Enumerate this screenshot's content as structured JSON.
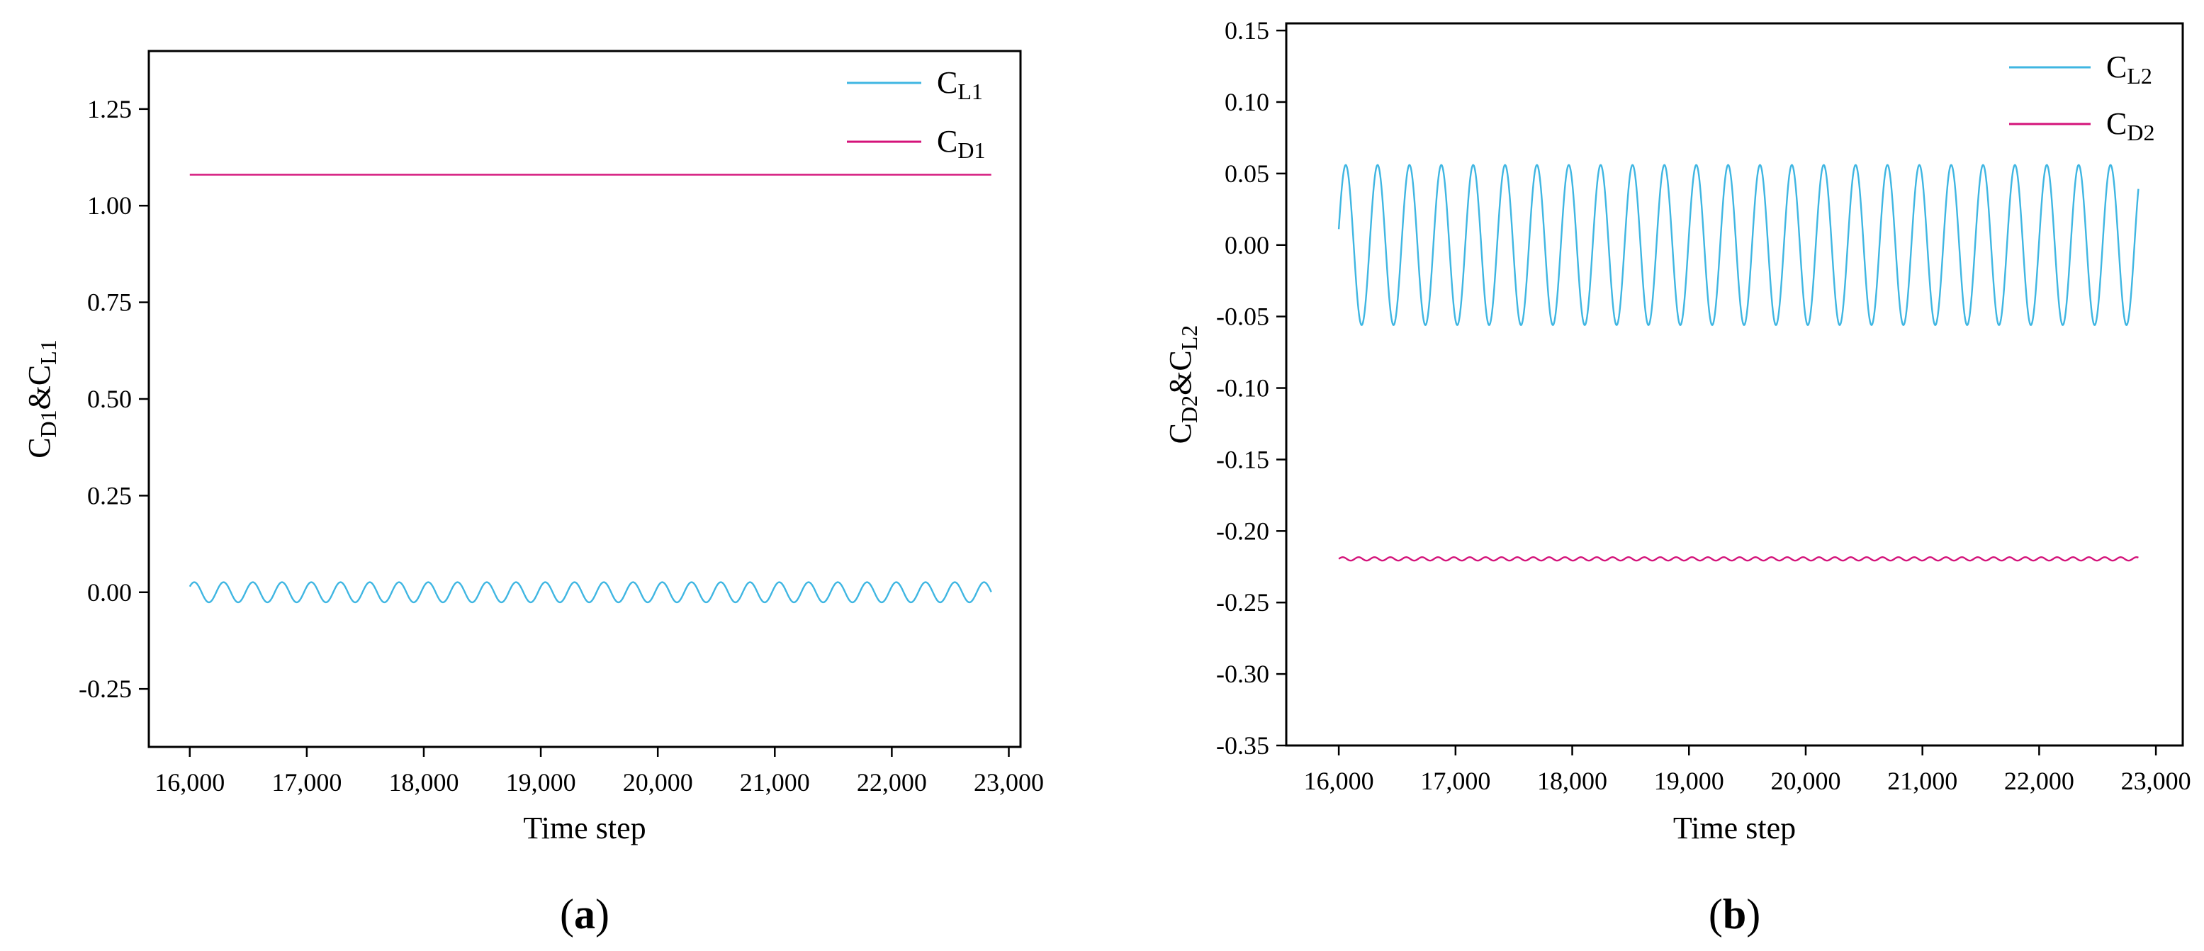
{
  "chart_data": [
    {
      "type": "line",
      "panel_label": "a",
      "xlabel": "Time step",
      "ylabel": {
        "base1": "C",
        "sub1": "D1",
        "amp": "&",
        "base2": "C",
        "sub2": "L1"
      },
      "xlim": [
        15650,
        23100
      ],
      "ylim": [
        -0.4,
        1.4
      ],
      "xticks": [
        16000,
        17000,
        18000,
        19000,
        20000,
        21000,
        22000,
        23000
      ],
      "xtick_labels": [
        "16,000",
        "17,000",
        "18,000",
        "19,000",
        "20,000",
        "21,000",
        "22,000",
        "23,000"
      ],
      "yticks": [
        -0.25,
        0,
        0.25,
        0.5,
        0.75,
        1,
        1.25
      ],
      "ytick_labels": [
        "-0.25",
        "0.00",
        "0.25",
        "0.50",
        "0.75",
        "1.00",
        "1.25"
      ],
      "legend_position": "top-right",
      "series": [
        {
          "name": "CL1",
          "label_base": "C",
          "label_sub": "L1",
          "color": "#3fb6e2",
          "kind": "sine",
          "x_start": 16000,
          "x_end": 22850,
          "mean": 0.0,
          "amplitude": 0.026,
          "period": 250,
          "phase": 0.6
        },
        {
          "name": "CD1",
          "label_base": "C",
          "label_sub": "D1",
          "color": "#d4137a",
          "kind": "constant",
          "x_start": 16000,
          "x_end": 22850,
          "value": 1.08
        }
      ]
    },
    {
      "type": "line",
      "panel_label": "b",
      "xlabel": "Time step",
      "ylabel": {
        "base1": "C",
        "sub1": "D2",
        "amp": "&",
        "base2": "C",
        "sub2": "L2"
      },
      "xlim": [
        15550,
        23230
      ],
      "ylim": [
        -0.35,
        0.155
      ],
      "xticks": [
        16000,
        17000,
        18000,
        19000,
        20000,
        21000,
        22000,
        23000
      ],
      "xtick_labels": [
        "16,000",
        "17,000",
        "18,000",
        "19,000",
        "20,000",
        "21,000",
        "22,000",
        "23,000"
      ],
      "yticks": [
        -0.35,
        -0.3,
        -0.25,
        -0.2,
        -0.15,
        -0.1,
        -0.05,
        0,
        0.05,
        0.1,
        0.15
      ],
      "ytick_labels": [
        "-0.35",
        "-0.30",
        "-0.25",
        "-0.20",
        "-0.15",
        "-0.10",
        "-0.05",
        "0.00",
        "0.05",
        "0.10",
        "0.15"
      ],
      "legend_position": "top-right",
      "series": [
        {
          "name": "CL2",
          "label_base": "C",
          "label_sub": "L2",
          "color": "#3fb6e2",
          "kind": "sine",
          "x_start": 16000,
          "x_end": 22850,
          "mean": 0.0,
          "amplitude": 0.056,
          "period": 273,
          "phase": 0.2
        },
        {
          "name": "CD2",
          "label_base": "C",
          "label_sub": "D2",
          "color": "#d4137a",
          "kind": "sine",
          "x_start": 16000,
          "x_end": 22850,
          "mean": -0.2195,
          "amplitude": 0.0012,
          "period": 136,
          "phase": 0.0
        }
      ]
    }
  ]
}
